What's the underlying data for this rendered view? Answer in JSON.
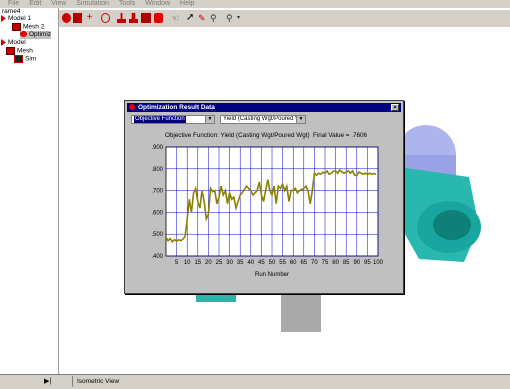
{
  "menu": [
    "File",
    "Edit",
    "View",
    "Simulation",
    "Tools",
    "Window",
    "Help"
  ],
  "tree": [
    {
      "label": "rame4",
      "icon": "none"
    },
    {
      "label": "Model 1",
      "icon": "red-square-icon"
    },
    {
      "label": "Mesh 2",
      "icon": "mesh-icon"
    },
    {
      "label": "Optimiz",
      "icon": "optimization-icon"
    },
    {
      "label": "Model",
      "icon": "red-square-icon"
    },
    {
      "label": "Mesh",
      "icon": "mesh-icon"
    },
    {
      "label": "Sim",
      "icon": "simulation-icon"
    }
  ],
  "status": {
    "view_label": "Isometric View",
    "arrow": "▶|"
  },
  "dialog": {
    "title": "Optimization Result Data",
    "close": "×",
    "combo1": "Objective Function",
    "combo2": "Yield (Casting Wgt/Poured W",
    "chart_title": "Objective Function: Yield (Casting Wgt/Poured Wgt)",
    "final_value": "Final Value = .7606"
  },
  "colors": {
    "accent": "#000080",
    "line": "#8b8000",
    "grid": "#0000cc"
  },
  "chart_data": {
    "type": "line",
    "title": "Objective Function: Yield (Casting Wgt/Poured Wgt)",
    "xlabel": "Run Number",
    "ylabel": "",
    "xlim": [
      0,
      100
    ],
    "ylim": [
      0.4,
      0.9
    ],
    "x_ticks": [
      5,
      10,
      15,
      20,
      25,
      30,
      35,
      40,
      45,
      50,
      55,
      60,
      65,
      70,
      75,
      80,
      85,
      90,
      95,
      100
    ],
    "y_ticks": [
      ".400",
      ".500",
      ".600",
      ".700",
      ".800",
      ".900"
    ],
    "y_tick_values": [
      0.4,
      0.5,
      0.6,
      0.7,
      0.8,
      0.9
    ],
    "series": [
      {
        "values": [
          [
            0,
            0.485
          ],
          [
            1,
            0.47
          ],
          [
            2,
            0.48
          ],
          [
            3,
            0.465
          ],
          [
            4,
            0.475
          ],
          [
            5,
            0.468
          ],
          [
            6,
            0.475
          ],
          [
            7,
            0.47
          ],
          [
            8,
            0.478
          ],
          [
            9,
            0.49
          ],
          [
            10,
            0.57
          ],
          [
            11,
            0.66
          ],
          [
            12,
            0.6
          ],
          [
            13,
            0.69
          ],
          [
            14,
            0.71
          ],
          [
            15,
            0.65
          ],
          [
            16,
            0.62
          ],
          [
            17,
            0.7
          ],
          [
            18,
            0.65
          ],
          [
            19,
            0.57
          ],
          [
            20,
            0.59
          ],
          [
            21,
            0.71
          ],
          [
            22,
            0.695
          ],
          [
            23,
            0.7
          ],
          [
            24,
            0.64
          ],
          [
            25,
            0.67
          ],
          [
            26,
            0.72
          ],
          [
            27,
            0.68
          ],
          [
            28,
            0.7
          ],
          [
            29,
            0.64
          ],
          [
            30,
            0.69
          ],
          [
            31,
            0.66
          ],
          [
            32,
            0.67
          ],
          [
            33,
            0.62
          ],
          [
            34,
            0.65
          ],
          [
            35,
            0.68
          ],
          [
            36,
            0.69
          ],
          [
            37,
            0.705
          ],
          [
            38,
            0.72
          ],
          [
            39,
            0.71
          ],
          [
            40,
            0.7
          ],
          [
            41,
            0.68
          ],
          [
            42,
            0.69
          ],
          [
            43,
            0.7
          ],
          [
            44,
            0.74
          ],
          [
            45,
            0.68
          ],
          [
            46,
            0.65
          ],
          [
            47,
            0.7
          ],
          [
            48,
            0.75
          ],
          [
            49,
            0.7
          ],
          [
            50,
            0.68
          ],
          [
            51,
            0.72
          ],
          [
            52,
            0.64
          ],
          [
            53,
            0.72
          ],
          [
            54,
            0.71
          ],
          [
            55,
            0.73
          ],
          [
            56,
            0.7
          ],
          [
            57,
            0.72
          ],
          [
            58,
            0.65
          ],
          [
            59,
            0.7
          ],
          [
            60,
            0.7
          ],
          [
            61,
            0.71
          ],
          [
            62,
            0.69
          ],
          [
            63,
            0.7
          ],
          [
            64,
            0.705
          ],
          [
            65,
            0.71
          ],
          [
            66,
            0.72
          ],
          [
            67,
            0.7
          ],
          [
            68,
            0.64
          ],
          [
            69,
            0.7
          ],
          [
            70,
            0.78
          ],
          [
            71,
            0.77
          ],
          [
            72,
            0.78
          ],
          [
            73,
            0.775
          ],
          [
            74,
            0.785
          ],
          [
            75,
            0.78
          ],
          [
            76,
            0.79
          ],
          [
            77,
            0.775
          ],
          [
            78,
            0.78
          ],
          [
            79,
            0.79
          ],
          [
            80,
            0.79
          ],
          [
            81,
            0.78
          ],
          [
            82,
            0.795
          ],
          [
            83,
            0.785
          ],
          [
            84,
            0.78
          ],
          [
            85,
            0.785
          ],
          [
            86,
            0.79
          ],
          [
            87,
            0.78
          ],
          [
            88,
            0.79
          ],
          [
            89,
            0.77
          ],
          [
            90,
            0.77
          ],
          [
            91,
            0.785
          ],
          [
            92,
            0.78
          ],
          [
            93,
            0.775
          ],
          [
            94,
            0.78
          ],
          [
            95,
            0.775
          ],
          [
            96,
            0.78
          ],
          [
            97,
            0.775
          ],
          [
            98,
            0.778
          ],
          [
            99,
            0.775
          ]
        ]
      }
    ],
    "grid": true
  }
}
